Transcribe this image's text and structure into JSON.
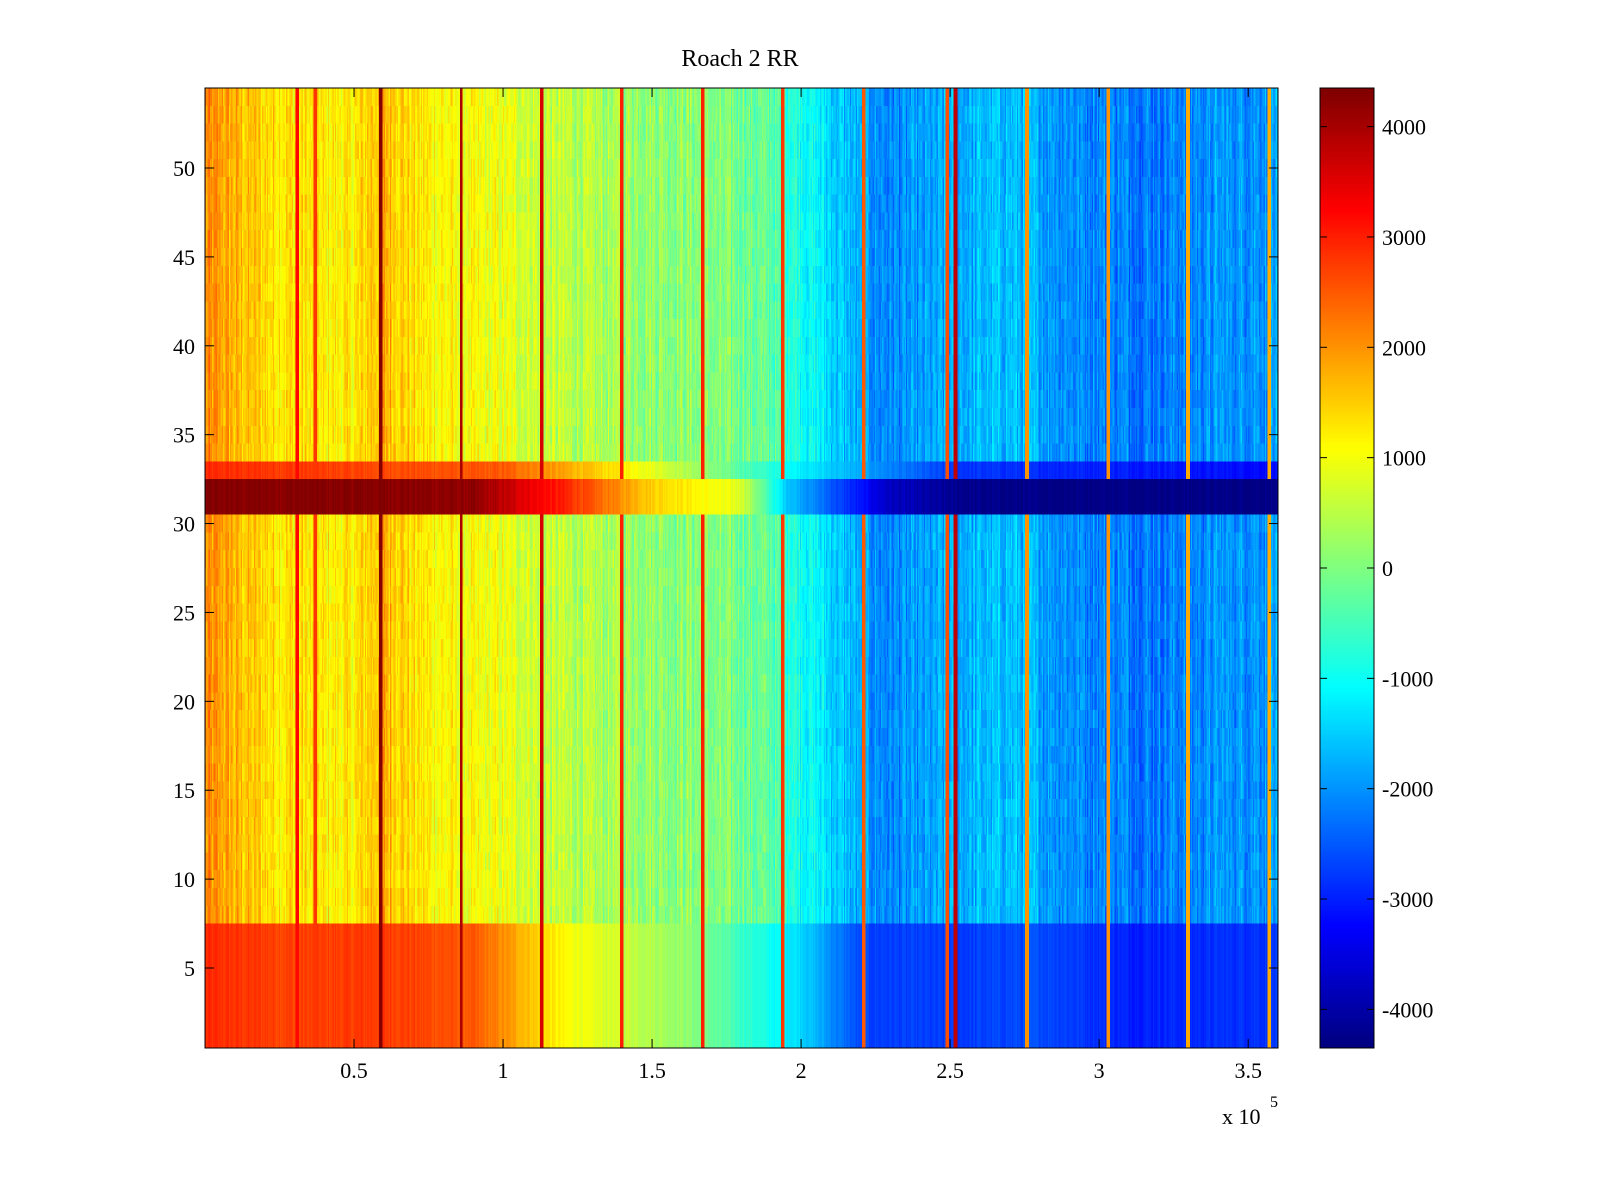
{
  "chart_data": {
    "type": "heatmap",
    "title": "Roach 2 RR",
    "xlabel": "",
    "ylabel": "",
    "x_exponent_label": "x 10",
    "x_exponent_power": "5",
    "xlim": [
      0,
      3.6
    ],
    "ylim": [
      0.5,
      54.5
    ],
    "x_scale_factor": 100000,
    "xticks": [
      0.5,
      1,
      1.5,
      2,
      2.5,
      3,
      3.5
    ],
    "xtick_labels": [
      "0.5",
      "1",
      "1.5",
      "2",
      "2.5",
      "3",
      "3.5"
    ],
    "yticks": [
      5,
      10,
      15,
      20,
      25,
      30,
      35,
      40,
      45,
      50
    ],
    "ytick_labels": [
      "5",
      "10",
      "15",
      "20",
      "25",
      "30",
      "35",
      "40",
      "45",
      "50"
    ],
    "rows": 54,
    "colormap": "jet",
    "colorbar": {
      "clim": [
        -4350,
        4350
      ],
      "ticks": [
        4000,
        3000,
        2000,
        1000,
        0,
        -1000,
        -2000,
        -3000,
        -4000
      ],
      "tick_labels": [
        "4000",
        "3000",
        "2000",
        "1000",
        "0",
        "-1000",
        "-2000",
        "-3000",
        "-4000"
      ]
    },
    "column_trend": {
      "x": [
        0,
        0.05,
        0.1,
        0.2,
        0.3,
        0.4,
        0.5,
        0.6,
        0.7,
        0.8,
        0.9,
        1.0,
        1.2,
        1.4,
        1.6,
        1.8,
        1.9,
        2.0,
        2.1,
        2.2,
        2.3,
        2.4,
        2.5,
        2.6,
        2.7,
        2.8,
        2.9,
        3.0,
        3.2,
        3.4,
        3.6
      ],
      "values": [
        2000,
        1900,
        1700,
        1400,
        1300,
        1200,
        1200,
        1800,
        1300,
        1100,
        1000,
        900,
        500,
        300,
        100,
        -100,
        -300,
        -900,
        -1400,
        -1900,
        -2100,
        -2000,
        -1800,
        -1700,
        -1600,
        -1800,
        -2000,
        -2100,
        -2200,
        -2000,
        -1900
      ]
    },
    "vertical_streaks": [
      {
        "x": 0.31,
        "value": 3200
      },
      {
        "x": 0.37,
        "value": 2800
      },
      {
        "x": 0.59,
        "value": 4300
      },
      {
        "x": 0.86,
        "value": 4000
      },
      {
        "x": 1.13,
        "value": 3600
      },
      {
        "x": 1.4,
        "value": 3000
      },
      {
        "x": 1.67,
        "value": 3000
      },
      {
        "x": 1.94,
        "value": 2800
      },
      {
        "x": 2.21,
        "value": 2500
      },
      {
        "x": 2.49,
        "value": 2600
      },
      {
        "x": 2.52,
        "value": 3800
      },
      {
        "x": 2.76,
        "value": 2000
      },
      {
        "x": 3.03,
        "value": 2000
      },
      {
        "x": 3.3,
        "value": 1800
      },
      {
        "x": 3.57,
        "value": 1800
      }
    ],
    "highlight_rows": [
      {
        "rows": [
          31,
          32
        ],
        "x": [
          0,
          0.3,
          0.6,
          0.9,
          1.2,
          1.5,
          1.8,
          1.95,
          2.1,
          2.3,
          2.5,
          2.7,
          3.0,
          3.3,
          3.6
        ],
        "values": [
          4300,
          4300,
          4300,
          4200,
          3000,
          1500,
          800,
          -1500,
          -2500,
          -3800,
          -4200,
          -4300,
          -4300,
          -4300,
          -4300
        ]
      },
      {
        "rows": [
          33
        ],
        "x": [
          0,
          1.0,
          1.5,
          2.0,
          2.5,
          3.6
        ],
        "values": [
          2900,
          2500,
          900,
          -1200,
          -2800,
          -3200
        ]
      },
      {
        "rows": [
          1,
          2,
          3,
          4,
          5,
          6,
          7
        ],
        "x": [
          0,
          0.3,
          0.6,
          0.9,
          1.2,
          1.6,
          2.0,
          2.2,
          2.5,
          2.8,
          3.1,
          3.6
        ],
        "values": [
          2900,
          2700,
          2800,
          2500,
          1100,
          200,
          -1400,
          -2700,
          -2800,
          -2600,
          -3000,
          -2800
        ]
      }
    ]
  }
}
